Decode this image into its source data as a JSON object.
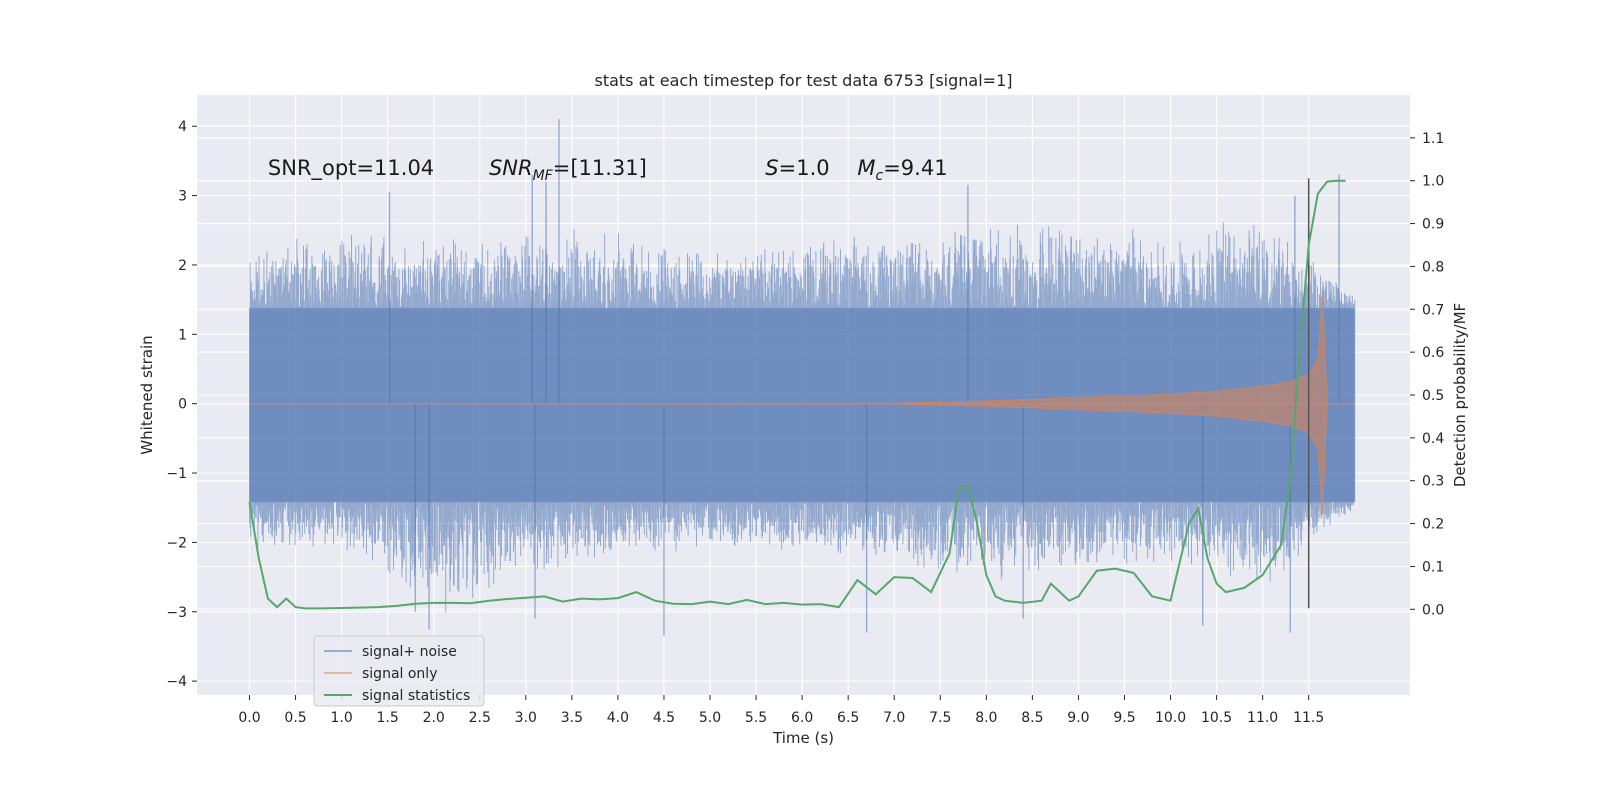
{
  "chart_data": {
    "type": "line",
    "title": "stats at each timestep for test data 6753 [signal=1]",
    "xlabel": "Time (s)",
    "ylabel": "Whitened strain",
    "y2label": "Detection probability/MF",
    "xlim": [
      -0.57,
      12.6
    ],
    "ylim": [
      -4.2,
      4.45
    ],
    "y2lim": [
      -0.2,
      1.2
    ],
    "xticks": [
      0.0,
      0.5,
      1.0,
      1.5,
      2.0,
      2.5,
      3.0,
      3.5,
      4.0,
      4.5,
      5.0,
      5.5,
      6.0,
      6.5,
      7.0,
      7.5,
      8.0,
      8.5,
      9.0,
      9.5,
      10.0,
      10.5,
      11.0,
      11.5
    ],
    "xtick_labels": [
      "0.0",
      "0.5",
      "1.0",
      "1.5",
      "2.0",
      "2.5",
      "3.0",
      "3.5",
      "4.0",
      "4.5",
      "5.0",
      "5.5",
      "6.0",
      "6.5",
      "7.0",
      "7.5",
      "8.0",
      "8.5",
      "9.0",
      "9.5",
      "10.0",
      "10.5",
      "11.0",
      "11.5"
    ],
    "yticks": [
      -4,
      -3,
      -2,
      -1,
      0,
      1,
      2,
      3,
      4
    ],
    "ytick_labels": [
      "−4",
      "−3",
      "−2",
      "−1",
      "0",
      "1",
      "2",
      "3",
      "4"
    ],
    "y2ticks": [
      0.0,
      0.1,
      0.2,
      0.3,
      0.4,
      0.5,
      0.6,
      0.7,
      0.8,
      0.9,
      1.0,
      1.1
    ],
    "y2tick_labels": [
      "0.0",
      "0.1",
      "0.2",
      "0.3",
      "0.4",
      "0.5",
      "0.6",
      "0.7",
      "0.8",
      "0.9",
      "1.0",
      "1.1"
    ],
    "grid": true,
    "legend_position": "lower-left",
    "background": "#eaeaf2",
    "series": [
      {
        "name": "signal+ noise",
        "color": "#4c72b0",
        "alpha": 0.5,
        "kind": "noisy strain envelope",
        "x_range": [
          0.0,
          12.0
        ],
        "y_range": [
          -3.35,
          4.1
        ],
        "envelope": {
          "x": [
            0.0,
            1.0,
            2.0,
            3.0,
            4.0,
            5.0,
            6.0,
            7.0,
            8.0,
            9.0,
            10.0,
            11.0,
            12.0
          ],
          "upper": [
            2.4,
            2.5,
            2.4,
            2.6,
            2.5,
            2.3,
            2.4,
            2.5,
            2.7,
            2.6,
            2.5,
            2.8,
            1.6
          ],
          "lower": [
            -2.2,
            -2.1,
            -3.2,
            -2.5,
            -2.3,
            -2.1,
            -2.2,
            -2.4,
            -2.6,
            -2.5,
            -2.4,
            -2.8,
            -1.5
          ]
        },
        "spikes": [
          {
            "x": 1.52,
            "y": 3.05
          },
          {
            "x": 3.07,
            "y": 3.3
          },
          {
            "x": 3.22,
            "y": 3.2
          },
          {
            "x": 3.36,
            "y": 4.1
          },
          {
            "x": 7.8,
            "y": 3.15
          },
          {
            "x": 11.35,
            "y": 3.0
          },
          {
            "x": 11.83,
            "y": 3.3
          },
          {
            "x": 1.8,
            "y": -3.0
          },
          {
            "x": 1.95,
            "y": -3.25
          },
          {
            "x": 4.5,
            "y": -3.35
          },
          {
            "x": 6.7,
            "y": -3.3
          },
          {
            "x": 11.3,
            "y": -3.3
          },
          {
            "x": 3.1,
            "y": -3.1
          },
          {
            "x": 10.35,
            "y": -3.2
          },
          {
            "x": 8.4,
            "y": -3.1
          }
        ]
      },
      {
        "name": "signal only",
        "color": "#dd8452",
        "alpha": 0.5,
        "kind": "chirp envelope",
        "x": [
          0.0,
          7.0,
          7.5,
          8.0,
          8.5,
          9.0,
          9.5,
          10.0,
          10.5,
          11.0,
          11.3,
          11.5,
          11.6,
          11.65,
          11.7,
          12.0
        ],
        "amplitude": [
          0.0,
          0.005,
          0.02,
          0.04,
          0.06,
          0.09,
          0.11,
          0.14,
          0.18,
          0.25,
          0.32,
          0.42,
          0.65,
          1.6,
          0.0,
          0.0
        ]
      },
      {
        "name": "signal statistics",
        "color": "#55a868",
        "axis": "right",
        "x": [
          0.0,
          0.1,
          0.2,
          0.3,
          0.4,
          0.5,
          0.6,
          0.8,
          1.0,
          1.2,
          1.4,
          1.6,
          1.8,
          2.0,
          2.2,
          2.4,
          2.6,
          2.8,
          3.0,
          3.2,
          3.4,
          3.6,
          3.8,
          4.0,
          4.2,
          4.4,
          4.6,
          4.8,
          5.0,
          5.2,
          5.4,
          5.6,
          5.8,
          6.0,
          6.2,
          6.4,
          6.6,
          6.8,
          7.0,
          7.2,
          7.4,
          7.6,
          7.7,
          7.8,
          7.9,
          8.0,
          8.1,
          8.2,
          8.4,
          8.6,
          8.7,
          8.8,
          8.9,
          9.0,
          9.2,
          9.4,
          9.6,
          9.8,
          10.0,
          10.2,
          10.3,
          10.4,
          10.5,
          10.6,
          10.8,
          11.0,
          11.2,
          11.3,
          11.4,
          11.5,
          11.6,
          11.7,
          11.8,
          11.9
        ],
        "values": [
          0.25,
          0.12,
          0.025,
          0.005,
          0.025,
          0.005,
          0.002,
          0.002,
          0.003,
          0.004,
          0.005,
          0.008,
          0.013,
          0.015,
          0.015,
          0.014,
          0.02,
          0.024,
          0.027,
          0.03,
          0.018,
          0.025,
          0.023,
          0.026,
          0.04,
          0.02,
          0.013,
          0.012,
          0.018,
          0.012,
          0.022,
          0.012,
          0.015,
          0.011,
          0.012,
          0.005,
          0.068,
          0.035,
          0.075,
          0.073,
          0.04,
          0.13,
          0.28,
          0.29,
          0.2,
          0.08,
          0.03,
          0.02,
          0.015,
          0.02,
          0.06,
          0.04,
          0.02,
          0.03,
          0.09,
          0.095,
          0.085,
          0.03,
          0.02,
          0.2,
          0.235,
          0.12,
          0.06,
          0.04,
          0.05,
          0.08,
          0.15,
          0.3,
          0.6,
          0.85,
          0.97,
          0.998,
          1.0,
          1.0
        ]
      }
    ],
    "vline": {
      "x": 11.5,
      "color": "#555555",
      "y_range": [
        -2.95,
        3.25
      ]
    },
    "annotations": [
      {
        "text": "SNR_opt=11.04",
        "x": 0.2,
        "y": 3.3
      },
      {
        "text": "SNR",
        "sub": "MF",
        "suffix": "=[11.31]",
        "x": 2.6,
        "y": 3.3,
        "italic_main": true
      },
      {
        "text": "S",
        "suffix": "=1.0",
        "x": 5.6,
        "y": 3.3,
        "italic_main": true
      },
      {
        "text": "M",
        "sub": "c",
        "suffix": "=9.41",
        "x": 6.6,
        "y": 3.3,
        "italic_main": true
      }
    ],
    "legend": [
      {
        "label": "signal+ noise",
        "color": "#4c72b0",
        "alpha": 0.5
      },
      {
        "label": "signal only",
        "color": "#dd8452",
        "alpha": 0.5
      },
      {
        "label": "signal statistics",
        "color": "#55a868",
        "alpha": 1.0
      }
    ]
  }
}
